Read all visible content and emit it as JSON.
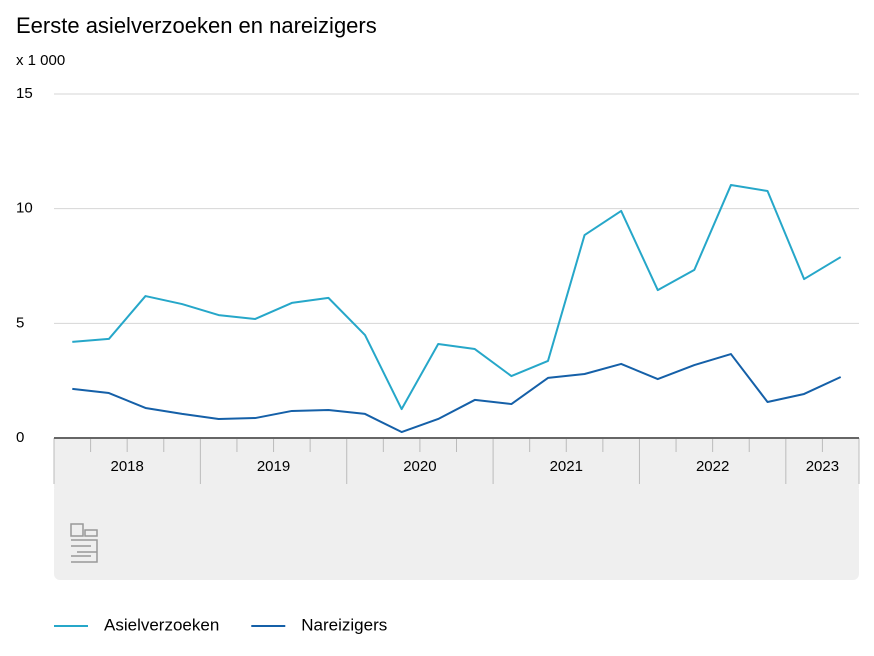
{
  "chart_data": {
    "type": "line",
    "title": "Eerste asielverzoeken en nareizigers",
    "y_unit": "x 1 000",
    "categories": [
      "2018",
      null,
      null,
      null,
      "2019",
      null,
      null,
      null,
      "2020",
      null,
      null,
      null,
      "2021",
      null,
      null,
      null,
      "2022",
      null,
      null,
      null,
      "2023",
      null
    ],
    "series": [
      {
        "name": "Asielverzoeken",
        "color": "#26a7c9",
        "values": [
          4.19,
          4.32,
          6.19,
          5.84,
          5.36,
          5.19,
          5.89,
          6.11,
          4.49,
          1.26,
          4.1,
          3.88,
          2.7,
          3.36,
          8.85,
          9.9,
          6.45,
          7.33,
          11.03,
          10.77,
          6.93,
          7.89
        ]
      },
      {
        "name": "Nareizigers",
        "color": "#1560a8",
        "values": [
          2.14,
          1.96,
          1.31,
          1.05,
          0.83,
          0.87,
          1.18,
          1.22,
          1.05,
          0.26,
          0.83,
          1.66,
          1.48,
          2.62,
          2.79,
          3.23,
          2.57,
          3.18,
          3.66,
          1.57,
          1.92,
          2.66
        ]
      }
    ],
    "ylim": [
      0,
      15
    ],
    "yticks": [
      0,
      5,
      10,
      15
    ],
    "grid": true,
    "legend": "bottom"
  }
}
